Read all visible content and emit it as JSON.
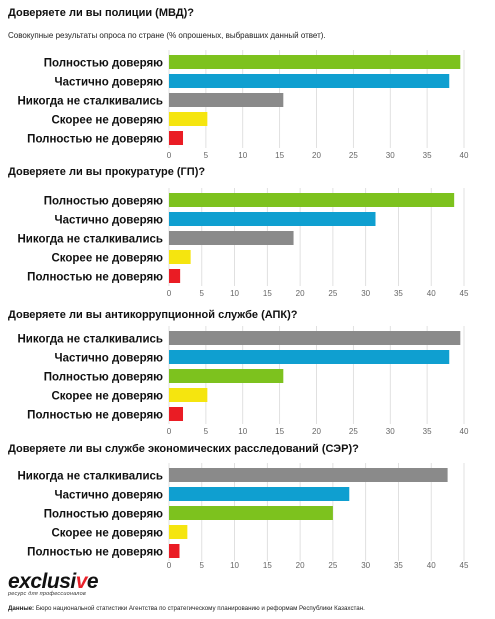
{
  "colors": {
    "green": "#7dc21e",
    "blue": "#0f9fd0",
    "gray": "#8a8a8a",
    "yellow": "#f5e50f",
    "red": "#ea1c24"
  },
  "chart_data": [
    {
      "type": "bar",
      "orientation": "horizontal",
      "title": "Доверяете ли вы полиции (МВД)?",
      "subtitle": "Совокупные результаты опроса по стране (% опрошеных, выбравших данный ответ).",
      "categories": [
        "Полностью доверяю",
        "Частично доверяю",
        "Никогда не сталкивались",
        "Скорее не доверяю",
        "Полностью не доверяю"
      ],
      "values": [
        39.5,
        38,
        15.5,
        5.2,
        1.9
      ],
      "colors": [
        "green",
        "blue",
        "gray",
        "yellow",
        "red"
      ],
      "xlim": [
        0,
        40
      ],
      "xticks": [
        0,
        5,
        10,
        15,
        20,
        25,
        30,
        35,
        40
      ],
      "grid": true
    },
    {
      "type": "bar",
      "orientation": "horizontal",
      "title": "Доверяете ли вы прокуратуре (ГП)?",
      "categories": [
        "Полностью доверяю",
        "Частично доверяю",
        "Никогда не сталкивались",
        "Скорее не доверяю",
        "Полностью не доверяю"
      ],
      "values": [
        43.5,
        31.5,
        19,
        3.3,
        1.7
      ],
      "colors": [
        "green",
        "blue",
        "gray",
        "yellow",
        "red"
      ],
      "xlim": [
        0,
        45
      ],
      "xticks": [
        0,
        5,
        10,
        15,
        20,
        25,
        30,
        35,
        40,
        45
      ],
      "grid": true
    },
    {
      "type": "bar",
      "orientation": "horizontal",
      "title": "Доверяете ли вы антикоррупционной службе (АПК)?",
      "categories": [
        "Никогда не сталкивались",
        "Частично доверяю",
        "Полностью доверяю",
        "Скорее не доверяю",
        "Полностью не доверяю"
      ],
      "values": [
        39.5,
        38,
        15.5,
        5.2,
        1.9
      ],
      "colors": [
        "gray",
        "blue",
        "green",
        "yellow",
        "red"
      ],
      "xlim": [
        0,
        40
      ],
      "xticks": [
        0,
        5,
        10,
        15,
        20,
        25,
        30,
        35,
        40
      ],
      "grid": true
    },
    {
      "type": "bar",
      "orientation": "horizontal",
      "title": "Доверяете ли вы службе экономических расследований (СЭР)?",
      "categories": [
        "Никогда не сталкивались",
        "Частично доверяю",
        "Полностью доверяю",
        "Скорее не доверяю",
        "Полностью не доверяю"
      ],
      "values": [
        42.5,
        27.5,
        25,
        2.8,
        1.6
      ],
      "colors": [
        "gray",
        "blue",
        "green",
        "yellow",
        "red"
      ],
      "xlim": [
        0,
        45
      ],
      "xticks": [
        0,
        5,
        10,
        15,
        20,
        25,
        30,
        35,
        40,
        45
      ],
      "grid": true
    }
  ],
  "footer": {
    "logo_text": "exclusive",
    "logo_tagline": "ресурс для профессионалов",
    "source_label": "Данные:",
    "source_text": "Бюро национальной статистики Агентства по стратегическому планированию и реформам Республики Казахстан."
  }
}
